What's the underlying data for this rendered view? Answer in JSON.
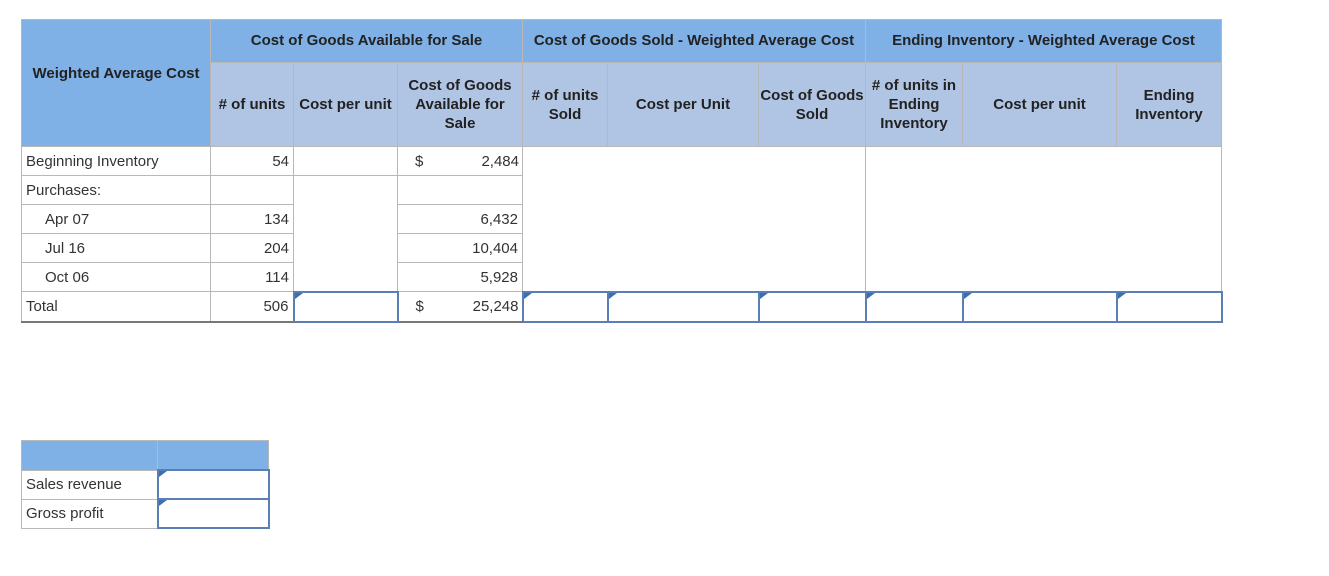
{
  "main": {
    "corner_header": "Weighted Average Cost",
    "group_headers": {
      "available": "Cost of Goods Available for Sale",
      "cogs": "Cost of Goods Sold - Weighted Average Cost",
      "ending": "Ending Inventory - Weighted Average Cost"
    },
    "sub_headers": {
      "units": "# of units",
      "cost_per_unit": "Cost per unit",
      "cost_available": "Cost of Goods Available for Sale",
      "units_sold": "# of units Sold",
      "cogs_cost_per_unit": "Cost per Unit",
      "cogs_total": "Cost of Goods Sold",
      "units_ending": "# of units in Ending Inventory",
      "ending_cost_per_unit": "Cost per unit",
      "ending_inventory": "Ending Inventory"
    },
    "rows": {
      "beginning": {
        "label": "Beginning Inventory",
        "units": "54",
        "currency": "$",
        "cost": "2,484"
      },
      "purchases": {
        "label": "Purchases:"
      },
      "apr": {
        "label": "Apr 07",
        "units": "134",
        "cost": "6,432"
      },
      "jul": {
        "label": "Jul 16",
        "units": "204",
        "cost": "10,404"
      },
      "oct": {
        "label": "Oct 06",
        "units": "114",
        "cost": "5,928"
      },
      "total": {
        "label": "Total",
        "units": "506",
        "currency": "$",
        "cost": "25,248"
      }
    }
  },
  "summary": {
    "sales_revenue_label": "Sales revenue",
    "gross_profit_label": "Gross profit"
  },
  "colors": {
    "header_main": "#7fb0e6",
    "header_sub": "#b0c4e3",
    "input_border": "#5a7fb4"
  }
}
